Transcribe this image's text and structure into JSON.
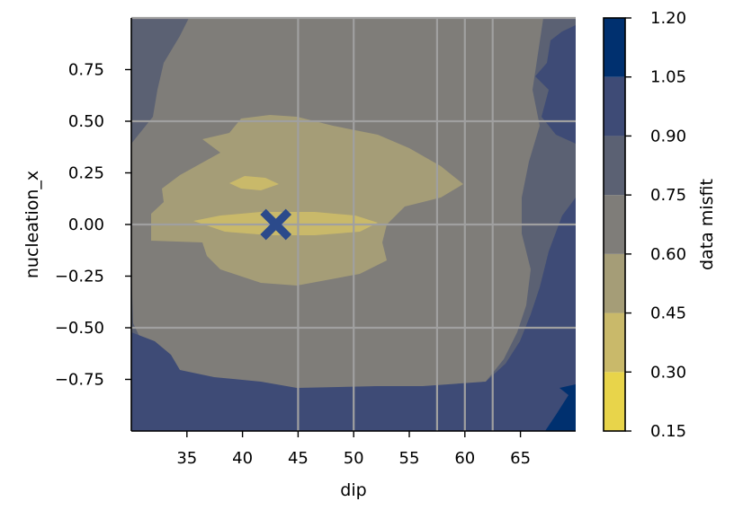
{
  "chart_data": {
    "type": "contour",
    "xlabel": "dip",
    "ylabel": "nucleation_x",
    "xlim": [
      30,
      70
    ],
    "ylim": [
      -1.0,
      1.0
    ],
    "x_ticks": [
      "35",
      "40",
      "45",
      "50",
      "55",
      "60",
      "65"
    ],
    "y_ticks": [
      "0.75",
      "0.50",
      "0.25",
      "0.00",
      "−0.25",
      "−0.50",
      "−0.75"
    ],
    "x_tick_values": [
      35,
      40,
      45,
      50,
      55,
      60,
      65
    ],
    "y_tick_values": [
      0.75,
      0.5,
      0.25,
      0.0,
      -0.25,
      -0.5,
      -0.75
    ],
    "grid_lines": {
      "x": [
        45,
        50,
        57.5,
        60,
        62.5
      ],
      "y": [
        0.5,
        0.0,
        -0.5
      ]
    },
    "grid_color": "#a0a0a0",
    "marker": {
      "x": 43,
      "y": 0.0,
      "symbol": "X",
      "color": "#2b4a8b"
    },
    "colorbar": {
      "label": "data misfit",
      "levels": [
        0.15,
        0.3,
        0.45,
        0.6,
        0.75,
        0.9,
        1.05,
        1.2
      ],
      "tick_labels": [
        "1.20",
        "1.05",
        "0.90",
        "0.75",
        "0.60",
        "0.45",
        "0.30",
        "0.15"
      ],
      "colors": [
        "#e8d44a",
        "#c9b96a",
        "#a59d77",
        "#7f7d79",
        "#5b6173",
        "#3e4b76",
        "#00306f"
      ]
    }
  }
}
